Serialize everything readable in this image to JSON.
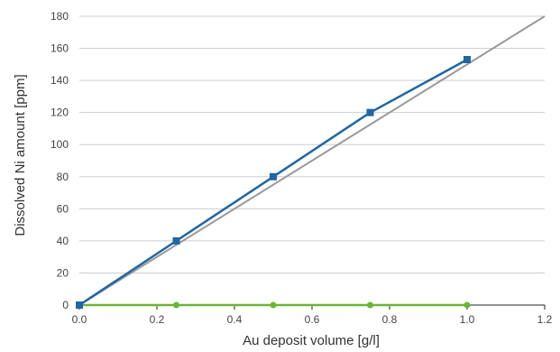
{
  "chart_data": {
    "type": "line",
    "title": "",
    "xlabel": "Au deposit volume [g/l]",
    "ylabel": "Dissolved Ni amount [ppm]",
    "xlim": [
      0,
      1.2
    ],
    "ylim": [
      0,
      180
    ],
    "x_ticks": [
      0.0,
      0.2,
      0.4,
      0.6,
      0.8,
      1.0,
      1.2
    ],
    "x_tick_labels": [
      "0.0",
      "0.2",
      "0.4",
      "0.6",
      "0.8",
      "1.0",
      "1.2"
    ],
    "y_ticks": [
      0,
      20,
      40,
      60,
      80,
      100,
      120,
      140,
      160,
      180
    ],
    "y_tick_labels": [
      "0",
      "20",
      "40",
      "60",
      "80",
      "100",
      "120",
      "140",
      "160",
      "180"
    ],
    "grid": "horizontal",
    "legend": "none",
    "series": [
      {
        "marker": "square",
        "color": "#1f66a3",
        "x": [
          0.0,
          0.25,
          0.5,
          0.75,
          1.0
        ],
        "y": [
          0,
          40,
          80,
          120,
          153
        ]
      },
      {
        "marker": "circle",
        "color": "#6ab536",
        "x": [
          0.0,
          0.25,
          0.5,
          0.75,
          1.0
        ],
        "y": [
          0,
          0,
          0,
          0,
          0
        ]
      },
      {
        "marker": "none",
        "color": "#9a9a9a",
        "x": [
          0.0,
          1.2
        ],
        "y": [
          0,
          180
        ]
      }
    ]
  }
}
